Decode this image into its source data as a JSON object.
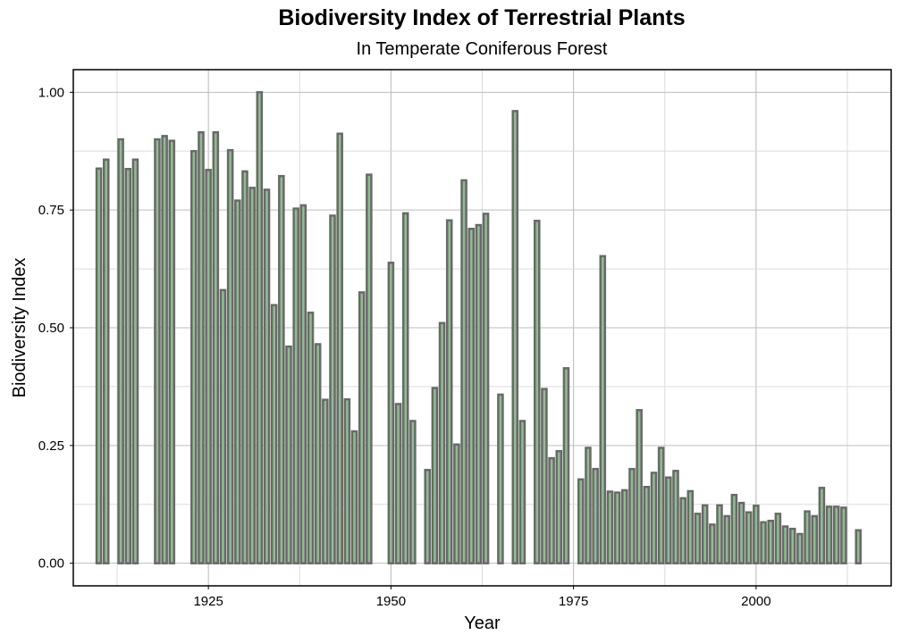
{
  "chart_data": {
    "type": "bar",
    "title": "Biodiversity Index of Terrestrial Plants",
    "subtitle": "In Temperate Coniferous Forest",
    "xlabel": "Year",
    "ylabel": "Biodiversity Index",
    "xlim": [
      1906.5,
      2018.5
    ],
    "ylim": [
      -0.048,
      1.048
    ],
    "xticks": [
      1925,
      1950,
      1975,
      2000
    ],
    "xtick_labels": [
      "1925",
      "1950",
      "1975",
      "2000"
    ],
    "yticks": [
      0,
      0.25,
      0.5,
      0.75,
      1.0
    ],
    "ytick_labels": [
      "0.00",
      "0.25",
      "0.50",
      "0.75",
      "1.00"
    ],
    "grid": true,
    "colors": {
      "bar_fill": "#8fbc8f",
      "bar_edge": "#696969",
      "grid": "#bdbdbd",
      "frame": "#000000"
    },
    "x": [
      1910,
      1911,
      1913,
      1914,
      1915,
      1918,
      1919,
      1920,
      1923,
      1924,
      1925,
      1926,
      1927,
      1928,
      1929,
      1930,
      1931,
      1932,
      1933,
      1934,
      1935,
      1936,
      1937,
      1938,
      1939,
      1940,
      1941,
      1942,
      1943,
      1944,
      1945,
      1946,
      1947,
      1948,
      1950,
      1951,
      1952,
      1953,
      1955,
      1956,
      1957,
      1958,
      1959,
      1960,
      1961,
      1962,
      1963,
      1965,
      1967,
      1968,
      1970,
      1971,
      1972,
      1973,
      1974,
      1976,
      1977,
      1978,
      1979,
      1980,
      1981,
      1982,
      1983,
      1984,
      1985,
      1986,
      1987,
      1988,
      1989,
      1990,
      1991,
      1992,
      1993,
      1994,
      1995,
      1996,
      1997,
      1998,
      1999,
      2000,
      2001,
      2002,
      2003,
      2004,
      2005,
      2006,
      2007,
      2008,
      2009,
      2010,
      2011,
      2012,
      2014
    ],
    "values": [
      0.838,
      0.857,
      0.9,
      0.837,
      0.857,
      0.9,
      0.907,
      0.897,
      0.875,
      0.915,
      0.835,
      0.915,
      0.58,
      0.877,
      0.77,
      0.832,
      0.797,
      1.0,
      0.793,
      0.548,
      0.822,
      0.46,
      0.753,
      0.76,
      0.532,
      0.465,
      0.347,
      0.738,
      0.912,
      0.348,
      0.28,
      0.575,
      0.825,
      0.0,
      0.638,
      0.338,
      0.743,
      0.302,
      0.198,
      0.372,
      0.51,
      0.728,
      0.252,
      0.813,
      0.71,
      0.718,
      0.742,
      0.358,
      0.96,
      0.302,
      0.727,
      0.37,
      0.223,
      0.238,
      0.414,
      0.178,
      0.245,
      0.2,
      0.652,
      0.152,
      0.15,
      0.155,
      0.2,
      0.325,
      0.162,
      0.192,
      0.245,
      0.182,
      0.196,
      0.138,
      0.153,
      0.105,
      0.123,
      0.082,
      0.123,
      0.1,
      0.145,
      0.128,
      0.108,
      0.122,
      0.087,
      0.09,
      0.105,
      0.078,
      0.073,
      0.062,
      0.11,
      0.1,
      0.16,
      0.12,
      0.12,
      0.118,
      0.07
    ]
  }
}
